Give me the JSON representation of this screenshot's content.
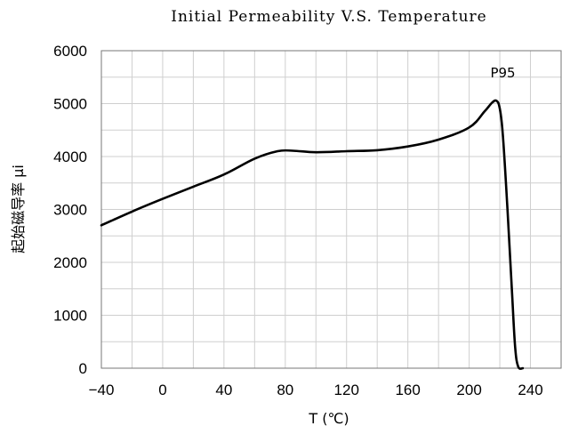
{
  "chart_data": {
    "type": "line",
    "title": "Initial Permeability V.S. Temperature",
    "xlabel": "T (℃)",
    "ylabel": "起始磁导率 μi",
    "xlim": [
      -40,
      260
    ],
    "ylim": [
      0,
      6000
    ],
    "xticks": [
      -40,
      0,
      40,
      80,
      120,
      160,
      200,
      240
    ],
    "yticks": [
      0,
      1000,
      2000,
      3000,
      4000,
      5000,
      6000
    ],
    "grid": true,
    "series": [
      {
        "name": "P95",
        "x": [
          -40,
          -20,
          0,
          20,
          40,
          60,
          75,
          85,
          100,
          120,
          140,
          160,
          180,
          200,
          210,
          215,
          218,
          220,
          222,
          225,
          228,
          230,
          232,
          235
        ],
        "y": [
          2700,
          2960,
          3200,
          3430,
          3660,
          3960,
          4100,
          4110,
          4080,
          4100,
          4120,
          4190,
          4320,
          4550,
          4850,
          5020,
          5050,
          4900,
          4400,
          3000,
          1400,
          400,
          30,
          0
        ]
      }
    ],
    "annotations": [
      {
        "text": "P95",
        "x": 222,
        "y": 5580
      }
    ]
  }
}
